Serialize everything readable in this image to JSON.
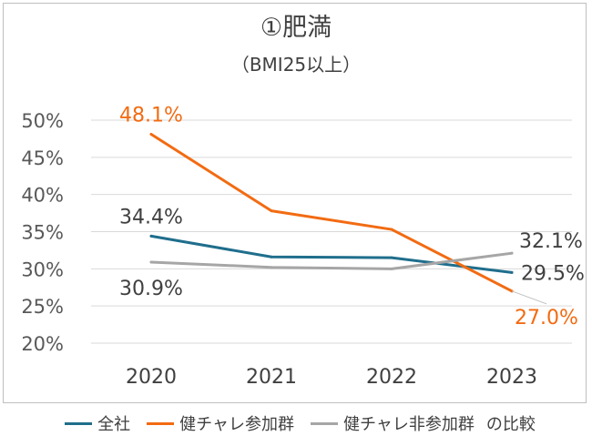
{
  "title": "①肥満",
  "subtitle": "（BMI25以上）",
  "legend_suffix": "の比較",
  "chart_data": {
    "type": "line",
    "categories": [
      "2020",
      "2021",
      "2022",
      "2023"
    ],
    "ylim": [
      0.2,
      0.5
    ],
    "yticks": [
      {
        "value": 0.5,
        "label": "50%"
      },
      {
        "value": 0.45,
        "label": "45%"
      },
      {
        "value": 0.4,
        "label": "40%"
      },
      {
        "value": 0.35,
        "label": "35%"
      },
      {
        "value": 0.3,
        "label": "30%"
      },
      {
        "value": 0.25,
        "label": "25%"
      },
      {
        "value": 0.2,
        "label": "20%"
      }
    ],
    "grid": true,
    "legend_position": "bottom",
    "series": [
      {
        "name": "全社",
        "color": "#1f6e8c",
        "values": [
          0.344,
          0.316,
          0.315,
          0.295
        ],
        "labels": [
          {
            "index": 0,
            "text": "34.4%",
            "anchor": "above"
          },
          {
            "index": 3,
            "text": "29.5%",
            "anchor": "right"
          }
        ]
      },
      {
        "name": "健チャレ参加群",
        "color": "#f26b12",
        "values": [
          0.481,
          0.378,
          0.353,
          0.27
        ],
        "labels": [
          {
            "index": 0,
            "text": "48.1%",
            "anchor": "above"
          },
          {
            "index": 3,
            "text": "27.0%",
            "anchor": "below-right"
          }
        ]
      },
      {
        "name": "健チャレ非参加群",
        "color": "#a6a6a6",
        "values": [
          0.309,
          0.302,
          0.3,
          0.321
        ],
        "labels": [
          {
            "index": 0,
            "text": "30.9%",
            "anchor": "below"
          },
          {
            "index": 3,
            "text": "32.1%",
            "anchor": "above-right"
          }
        ]
      }
    ]
  }
}
